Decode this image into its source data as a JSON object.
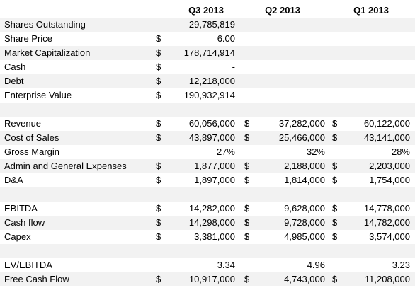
{
  "headers": [
    "Q3 2013",
    "Q2 2013",
    "Q1 2013"
  ],
  "rows": [
    {
      "label": "Shares Outstanding",
      "q3": {
        "sym": "",
        "val": "29,785,819"
      },
      "q2": {
        "sym": "",
        "val": ""
      },
      "q1": {
        "sym": "",
        "val": ""
      }
    },
    {
      "label": "Share Price",
      "q3": {
        "sym": "$",
        "val": "6.00"
      },
      "q2": {
        "sym": "",
        "val": ""
      },
      "q1": {
        "sym": "",
        "val": ""
      }
    },
    {
      "label": "Market Capitalization",
      "q3": {
        "sym": "$",
        "val": "178,714,914"
      },
      "q2": {
        "sym": "",
        "val": ""
      },
      "q1": {
        "sym": "",
        "val": ""
      }
    },
    {
      "label": "Cash",
      "q3": {
        "sym": "$",
        "val": "-"
      },
      "q2": {
        "sym": "",
        "val": ""
      },
      "q1": {
        "sym": "",
        "val": ""
      }
    },
    {
      "label": "Debt",
      "q3": {
        "sym": "$",
        "val": "12,218,000"
      },
      "q2": {
        "sym": "",
        "val": ""
      },
      "q1": {
        "sym": "",
        "val": ""
      }
    },
    {
      "label": "Enterprise Value",
      "q3": {
        "sym": "$",
        "val": "190,932,914"
      },
      "q2": {
        "sym": "",
        "val": ""
      },
      "q1": {
        "sym": "",
        "val": ""
      }
    },
    {
      "label": "",
      "q3": {
        "sym": "",
        "val": ""
      },
      "q2": {
        "sym": "",
        "val": ""
      },
      "q1": {
        "sym": "",
        "val": ""
      }
    },
    {
      "label": "Revenue",
      "q3": {
        "sym": "$",
        "val": "60,056,000"
      },
      "q2": {
        "sym": "$",
        "val": "37,282,000"
      },
      "q1": {
        "sym": "$",
        "val": "60,122,000"
      }
    },
    {
      "label": "Cost of Sales",
      "q3": {
        "sym": "$",
        "val": "43,897,000"
      },
      "q2": {
        "sym": "$",
        "val": "25,466,000"
      },
      "q1": {
        "sym": "$",
        "val": "43,141,000"
      }
    },
    {
      "label": "Gross Margin",
      "q3": {
        "sym": "",
        "val": "27%"
      },
      "q2": {
        "sym": "",
        "val": "32%"
      },
      "q1": {
        "sym": "",
        "val": "28%"
      }
    },
    {
      "label": "Admin and General Expenses",
      "q3": {
        "sym": "$",
        "val": "1,877,000"
      },
      "q2": {
        "sym": "$",
        "val": "2,188,000"
      },
      "q1": {
        "sym": "$",
        "val": "2,203,000"
      }
    },
    {
      "label": "D&A",
      "q3": {
        "sym": "$",
        "val": "1,897,000"
      },
      "q2": {
        "sym": "$",
        "val": "1,814,000"
      },
      "q1": {
        "sym": "$",
        "val": "1,754,000"
      }
    },
    {
      "label": "",
      "q3": {
        "sym": "",
        "val": ""
      },
      "q2": {
        "sym": "",
        "val": ""
      },
      "q1": {
        "sym": "",
        "val": ""
      }
    },
    {
      "label": "EBITDA",
      "q3": {
        "sym": "$",
        "val": "14,282,000"
      },
      "q2": {
        "sym": "$",
        "val": "9,628,000"
      },
      "q1": {
        "sym": "$",
        "val": "14,778,000"
      }
    },
    {
      "label": "Cash flow",
      "q3": {
        "sym": "$",
        "val": "14,298,000"
      },
      "q2": {
        "sym": "$",
        "val": "9,728,000"
      },
      "q1": {
        "sym": "$",
        "val": "14,782,000"
      }
    },
    {
      "label": "Capex",
      "q3": {
        "sym": "$",
        "val": "3,381,000"
      },
      "q2": {
        "sym": "$",
        "val": "4,985,000"
      },
      "q1": {
        "sym": "$",
        "val": "3,574,000"
      }
    },
    {
      "label": "",
      "q3": {
        "sym": "",
        "val": ""
      },
      "q2": {
        "sym": "",
        "val": ""
      },
      "q1": {
        "sym": "",
        "val": ""
      }
    },
    {
      "label": "EV/EBITDA",
      "q3": {
        "sym": "",
        "val": "3.34"
      },
      "q2": {
        "sym": "",
        "val": "4.96"
      },
      "q1": {
        "sym": "",
        "val": "3.23"
      }
    },
    {
      "label": "Free Cash Flow",
      "q3": {
        "sym": "$",
        "val": "10,917,000"
      },
      "q2": {
        "sym": "$",
        "val": "4,743,000"
      },
      "q1": {
        "sym": "$",
        "val": "11,208,000"
      }
    }
  ]
}
